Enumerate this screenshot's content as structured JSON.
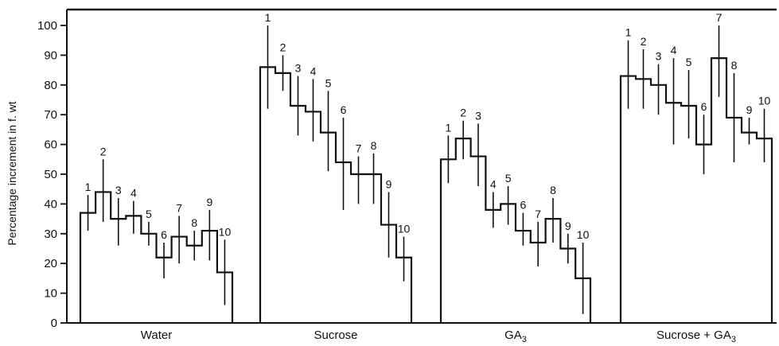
{
  "chart_data": {
    "type": "bar",
    "ylabel": "Percentage increment in f. wt",
    "ylim": [
      0,
      100
    ],
    "yticks": [
      0,
      10,
      20,
      30,
      40,
      50,
      60,
      70,
      80,
      90,
      100
    ],
    "grid": false,
    "legend": "none",
    "panels": [
      {
        "label": "Water",
        "sub": "",
        "bars": [
          {
            "label": "1",
            "value": 37,
            "err_low": 31,
            "err_high": 43
          },
          {
            "label": "2",
            "value": 44,
            "err_low": 34,
            "err_high": 55
          },
          {
            "label": "3",
            "value": 35,
            "err_low": 26,
            "err_high": 42
          },
          {
            "label": "4",
            "value": 36,
            "err_low": 30,
            "err_high": 41
          },
          {
            "label": "5",
            "value": 30,
            "err_low": 26,
            "err_high": 34
          },
          {
            "label": "6",
            "value": 22,
            "err_low": 15,
            "err_high": 27
          },
          {
            "label": "7",
            "value": 29,
            "err_low": 20,
            "err_high": 36
          },
          {
            "label": "8",
            "value": 26,
            "err_low": 21,
            "err_high": 31
          },
          {
            "label": "9",
            "value": 31,
            "err_low": 21,
            "err_high": 38
          },
          {
            "label": "10",
            "value": 17,
            "err_low": 6,
            "err_high": 28
          }
        ]
      },
      {
        "label": "Sucrose",
        "sub": "",
        "bars": [
          {
            "label": "1",
            "value": 86,
            "err_low": 72,
            "err_high": 100
          },
          {
            "label": "2",
            "value": 84,
            "err_low": 78,
            "err_high": 90
          },
          {
            "label": "3",
            "value": 73,
            "err_low": 63,
            "err_high": 83
          },
          {
            "label": "4",
            "value": 71,
            "err_low": 61,
            "err_high": 82
          },
          {
            "label": "5",
            "value": 64,
            "err_low": 51,
            "err_high": 78
          },
          {
            "label": "6",
            "value": 54,
            "err_low": 38,
            "err_high": 69
          },
          {
            "label": "7",
            "value": 50,
            "err_low": 40,
            "err_high": 56
          },
          {
            "label": "8",
            "value": 50,
            "err_low": 40,
            "err_high": 57
          },
          {
            "label": "9",
            "value": 33,
            "err_low": 22,
            "err_high": 44
          },
          {
            "label": "10",
            "value": 22,
            "err_low": 14,
            "err_high": 29
          }
        ]
      },
      {
        "label": "GA",
        "sub": "3",
        "bars": [
          {
            "label": "1",
            "value": 55,
            "err_low": 47,
            "err_high": 63
          },
          {
            "label": "2",
            "value": 62,
            "err_low": 55,
            "err_high": 68
          },
          {
            "label": "3",
            "value": 56,
            "err_low": 46,
            "err_high": 67
          },
          {
            "label": "4",
            "value": 38,
            "err_low": 32,
            "err_high": 44
          },
          {
            "label": "5",
            "value": 40,
            "err_low": 33,
            "err_high": 46
          },
          {
            "label": "6",
            "value": 31,
            "err_low": 26,
            "err_high": 37
          },
          {
            "label": "7",
            "value": 27,
            "err_low": 19,
            "err_high": 34
          },
          {
            "label": "8",
            "value": 35,
            "err_low": 27,
            "err_high": 42
          },
          {
            "label": "9",
            "value": 25,
            "err_low": 20,
            "err_high": 30
          },
          {
            "label": "10",
            "value": 15,
            "err_low": 3,
            "err_high": 27
          }
        ]
      },
      {
        "label": "Sucrose + GA",
        "sub": "3",
        "bars": [
          {
            "label": "1",
            "value": 83,
            "err_low": 72,
            "err_high": 95
          },
          {
            "label": "2",
            "value": 82,
            "err_low": 72,
            "err_high": 92
          },
          {
            "label": "3",
            "value": 80,
            "err_low": 70,
            "err_high": 87
          },
          {
            "label": "4",
            "value": 74,
            "err_low": 60,
            "err_high": 89
          },
          {
            "label": "5",
            "value": 73,
            "err_low": 62,
            "err_high": 85
          },
          {
            "label": "6",
            "value": 60,
            "err_low": 50,
            "err_high": 70
          },
          {
            "label": "7",
            "value": 89,
            "err_low": 76,
            "err_high": 100
          },
          {
            "label": "8",
            "value": 69,
            "err_low": 54,
            "err_high": 84
          },
          {
            "label": "9",
            "value": 64,
            "err_low": 60,
            "err_high": 69
          },
          {
            "label": "10",
            "value": 62,
            "err_low": 54,
            "err_high": 72
          }
        ]
      }
    ]
  }
}
